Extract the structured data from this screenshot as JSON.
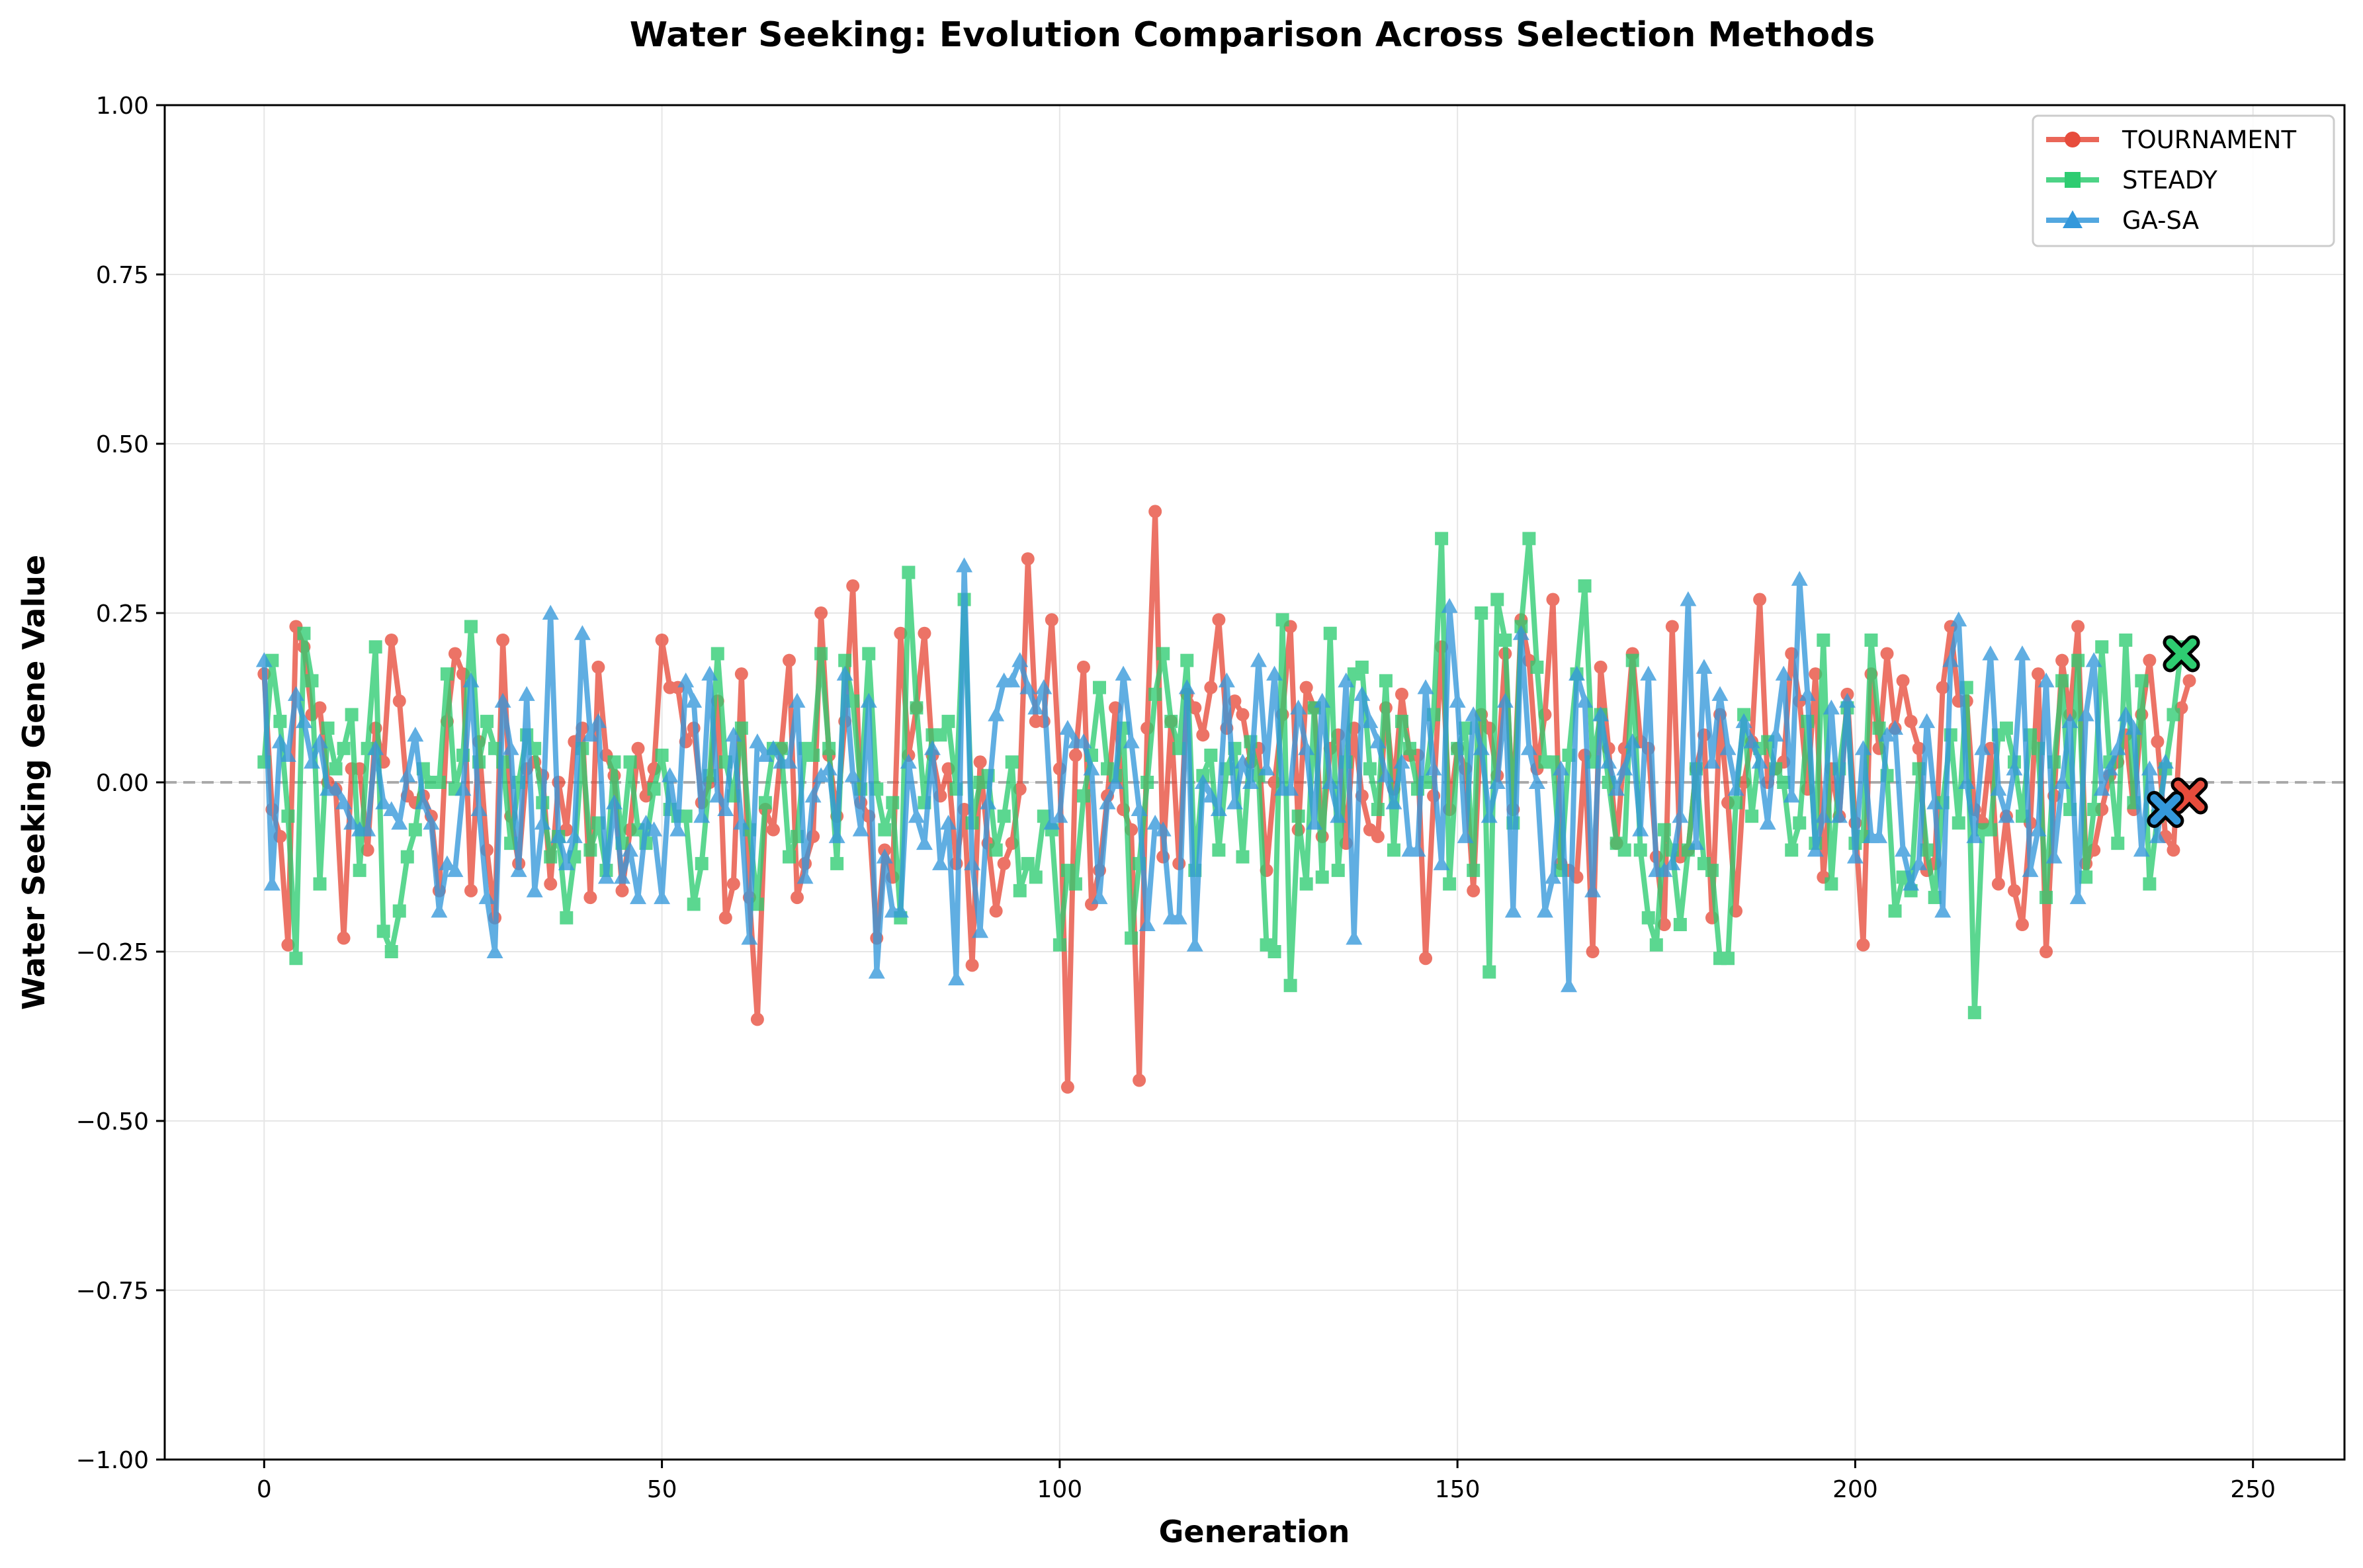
{
  "chart_data": {
    "type": "line",
    "title": "Water Seeking: Evolution Comparison Across Selection Methods",
    "xlabel": "Generation",
    "ylabel": "Water Seeking Gene Value",
    "xlim": [
      -12.5,
      261.5
    ],
    "ylim": [
      -1.0,
      1.0
    ],
    "xticks": [
      0,
      50,
      100,
      150,
      200,
      250
    ],
    "yticks": [
      -1.0,
      -0.75,
      -0.5,
      -0.25,
      0.0,
      0.25,
      0.5,
      0.75,
      1.0
    ],
    "xtick_labels": [
      "0",
      "50",
      "100",
      "150",
      "200",
      "250"
    ],
    "ytick_labels": [
      "−1.00",
      "−0.75",
      "−0.50",
      "−0.25",
      "0.00",
      "0.25",
      "0.50",
      "0.75",
      "1.00"
    ],
    "grid": true,
    "reference_line": 0.0,
    "legend_position": "top-right",
    "x": "generations 0-249",
    "series": [
      {
        "name": "TOURNAMENT",
        "color": "#e74c3c",
        "marker": "circle",
        "final_value": -0.02,
        "values": [
          0.16,
          -0.04,
          -0.08,
          -0.24,
          0.23,
          0.2,
          0.1,
          0.11,
          0.0,
          -0.01,
          -0.23,
          0.02,
          0.02,
          -0.1,
          0.08,
          0.03,
          0.21,
          0.12,
          -0.02,
          -0.03,
          -0.02,
          -0.05,
          -0.16,
          0.09,
          0.19,
          0.16,
          -0.16,
          0.06,
          -0.1,
          -0.2,
          0.21,
          -0.05,
          -0.12,
          0.02,
          0.03,
          0.01,
          -0.15,
          0.0,
          -0.07,
          0.06,
          0.08,
          -0.17,
          0.17,
          0.04,
          0.01,
          -0.16,
          -0.07,
          0.05,
          -0.02,
          0.02,
          0.21,
          0.14,
          0.14,
          0.06,
          0.08,
          -0.03,
          0.0,
          0.12,
          -0.2,
          -0.15,
          0.16,
          -0.17,
          -0.35,
          -0.04,
          -0.07,
          0.05,
          0.18,
          -0.17,
          -0.12,
          -0.08,
          0.25,
          0.04,
          -0.05,
          0.09,
          0.29,
          -0.03,
          -0.05,
          -0.23,
          -0.1,
          -0.14,
          0.22,
          0.04,
          0.11,
          0.22,
          0.04,
          -0.02,
          0.02,
          -0.12,
          -0.04,
          -0.27,
          0.03,
          -0.09,
          -0.19,
          -0.12,
          -0.09,
          -0.01,
          0.33,
          0.09,
          0.09,
          0.24,
          0.02,
          -0.45,
          0.04,
          0.17,
          -0.18,
          -0.13,
          -0.02,
          0.11,
          -0.04,
          -0.07,
          -0.44,
          0.08,
          0.4,
          -0.11,
          0.09,
          -0.12,
          0.13,
          0.11,
          0.07,
          0.14,
          0.24,
          0.08,
          0.12,
          0.1,
          0.03,
          0.05,
          -0.13,
          0.0,
          0.1,
          0.23,
          -0.07,
          0.14,
          0.11,
          -0.08,
          0.05,
          0.07,
          -0.09,
          0.08,
          -0.02,
          -0.07,
          -0.08,
          0.11,
          -0.01,
          0.13,
          0.04,
          0.04,
          -0.26,
          -0.02,
          0.2,
          -0.04,
          0.05,
          0.02,
          -0.16,
          0.1,
          0.08,
          0.01,
          0.19,
          -0.04,
          0.24,
          0.18,
          0.02,
          0.1,
          0.27,
          -0.12,
          -0.13,
          -0.14,
          0.04,
          -0.25,
          0.17,
          0.05,
          -0.09,
          0.05,
          0.19,
          0.06,
          0.05,
          -0.11,
          -0.21,
          0.23,
          -0.11,
          -0.1,
          0.02,
          0.07,
          -0.2,
          0.1,
          -0.03,
          -0.19,
          0.0,
          0.06,
          0.27,
          0.0,
          0.02,
          0.03,
          0.19,
          0.12,
          -0.01,
          0.16,
          -0.14,
          0.02,
          -0.05,
          0.13,
          -0.06,
          -0.24,
          0.16,
          0.05,
          0.19,
          0.08,
          0.15,
          0.09,
          0.05,
          -0.13,
          -0.12,
          0.14,
          0.23,
          0.12,
          0.12,
          -0.04,
          -0.06,
          0.05,
          -0.15,
          -0.05,
          -0.16,
          -0.21,
          -0.06,
          0.16,
          -0.25,
          -0.02,
          0.18,
          0.1,
          0.23,
          -0.12,
          -0.1,
          -0.04,
          0.01,
          0.03,
          0.07,
          -0.04,
          0.1,
          0.18,
          0.06,
          -0.08,
          -0.1,
          0.11,
          0.15
        ]
      },
      {
        "name": "STEADY",
        "color": "#2ecc71",
        "marker": "square",
        "final_value": 0.19,
        "values": [
          0.03,
          0.18,
          0.09,
          -0.05,
          -0.26,
          0.22,
          0.15,
          -0.15,
          0.08,
          0.02,
          0.05,
          0.1,
          -0.13,
          0.05,
          0.2,
          -0.22,
          -0.25,
          -0.19,
          -0.11,
          -0.07,
          0.02,
          0.0,
          0.0,
          0.16,
          -0.01,
          0.04,
          0.23,
          0.03,
          0.09,
          0.05,
          0.03,
          -0.09,
          0.0,
          0.07,
          0.05,
          -0.03,
          -0.11,
          -0.08,
          -0.2,
          -0.11,
          0.05,
          -0.1,
          -0.06,
          -0.13,
          0.03,
          -0.09,
          0.03,
          -0.07,
          -0.09,
          -0.01,
          0.04,
          -0.04,
          -0.05,
          -0.05,
          -0.18,
          -0.12,
          0.01,
          0.19,
          0.03,
          -0.02,
          0.08,
          -0.07,
          -0.18,
          -0.03,
          0.05,
          0.05,
          -0.11,
          -0.08,
          0.05,
          0.04,
          0.19,
          0.05,
          -0.12,
          0.18,
          0.12,
          -0.01,
          0.19,
          -0.01,
          -0.07,
          -0.03,
          -0.2,
          0.31,
          0.11,
          -0.03,
          0.07,
          0.07,
          0.09,
          -0.01,
          0.27,
          -0.06,
          0.0,
          0.01,
          -0.1,
          -0.05,
          0.03,
          -0.16,
          -0.12,
          -0.14,
          -0.05,
          -0.07,
          -0.24,
          -0.13,
          -0.15,
          -0.02,
          0.04,
          0.14,
          0.02,
          0.01,
          0.08,
          -0.23,
          -0.12,
          0.0,
          0.13,
          0.19,
          0.09,
          0.05,
          0.18,
          -0.13,
          0.01,
          0.04,
          -0.1,
          0.02,
          0.05,
          -0.11,
          0.06,
          0.01,
          -0.24,
          -0.25,
          0.24,
          -0.3,
          -0.05,
          -0.15,
          0.11,
          -0.14,
          0.22,
          -0.13,
          0.03,
          0.16,
          0.17,
          0.02,
          -0.04,
          0.15,
          -0.1,
          0.09,
          0.05,
          -0.01,
          0.0,
          0.1,
          0.36,
          -0.15,
          0.05,
          0.08,
          -0.13,
          0.25,
          -0.28,
          0.27,
          0.21,
          -0.06,
          0.23,
          0.36,
          0.17,
          0.03,
          0.03,
          -0.13,
          0.04,
          0.16,
          0.29,
          0.03,
          0.1,
          0.0,
          -0.09,
          -0.1,
          0.18,
          -0.1,
          -0.2,
          -0.24,
          -0.07,
          -0.1,
          -0.21,
          -0.1,
          0.02,
          -0.12,
          -0.13,
          -0.26,
          -0.26,
          -0.03,
          0.1,
          -0.05,
          0.05,
          0.06,
          0.02,
          0.0,
          -0.1,
          -0.06,
          0.09,
          -0.09,
          0.21,
          -0.15,
          0.02,
          0.11,
          -0.09,
          -0.08,
          0.21,
          0.08,
          0.01,
          -0.19,
          -0.14,
          -0.16,
          0.02,
          -0.1,
          -0.17,
          -0.03,
          0.07,
          -0.06,
          0.14,
          -0.34,
          -0.07,
          -0.07,
          0.07,
          0.08,
          0.03,
          -0.05,
          0.07,
          0.05,
          -0.17,
          0.03,
          0.15,
          -0.04,
          0.18,
          -0.14,
          -0.04,
          0.2,
          0.03,
          -0.09,
          0.21,
          -0.03,
          0.15,
          -0.15,
          -0.05,
          0.02,
          0.1,
          0.2
        ]
      },
      {
        "name": "GA-SA",
        "color": "#3498db",
        "marker": "triangle",
        "final_value": -0.04,
        "values": [
          0.18,
          -0.15,
          0.06,
          0.04,
          0.13,
          0.09,
          0.03,
          0.06,
          -0.01,
          -0.01,
          -0.03,
          -0.06,
          -0.07,
          -0.07,
          0.05,
          -0.03,
          -0.04,
          -0.06,
          0.01,
          0.07,
          -0.03,
          -0.06,
          -0.19,
          -0.12,
          -0.13,
          -0.01,
          0.15,
          -0.04,
          -0.17,
          -0.25,
          0.12,
          0.05,
          -0.13,
          0.13,
          -0.16,
          -0.06,
          0.25,
          -0.08,
          -0.12,
          -0.08,
          0.22,
          0.07,
          0.09,
          -0.14,
          -0.03,
          -0.14,
          -0.1,
          -0.17,
          -0.06,
          -0.07,
          -0.17,
          0.01,
          -0.07,
          0.15,
          0.12,
          -0.05,
          0.16,
          -0.02,
          -0.04,
          0.07,
          -0.06,
          -0.23,
          0.06,
          0.04,
          0.05,
          0.03,
          0.03,
          0.12,
          -0.14,
          -0.02,
          0.01,
          0.02,
          -0.08,
          0.16,
          0.01,
          -0.07,
          0.12,
          -0.28,
          -0.11,
          -0.19,
          -0.19,
          0.03,
          -0.05,
          -0.09,
          0.05,
          -0.12,
          -0.06,
          -0.29,
          0.32,
          -0.12,
          -0.22,
          -0.03,
          0.1,
          0.15,
          0.15,
          0.18,
          0.14,
          0.11,
          0.14,
          -0.06,
          -0.05,
          0.08,
          0.06,
          0.06,
          0.02,
          -0.17,
          -0.03,
          0.0,
          0.16,
          0.06,
          -0.04,
          -0.21,
          -0.06,
          -0.07,
          -0.2,
          -0.2,
          0.14,
          -0.24,
          0.0,
          -0.02,
          -0.04,
          0.15,
          -0.03,
          0.03,
          0.0,
          0.18,
          0.02,
          0.16,
          -0.01,
          -0.01,
          0.11,
          0.05,
          -0.06,
          0.12,
          0.0,
          -0.05,
          0.15,
          -0.23,
          0.13,
          0.09,
          0.06,
          0.01,
          -0.03,
          0.03,
          -0.1,
          -0.1,
          0.14,
          0.02,
          -0.12,
          0.26,
          0.12,
          -0.08,
          0.1,
          0.05,
          -0.05,
          0.0,
          0.12,
          -0.19,
          0.22,
          0.05,
          0.0,
          -0.19,
          -0.14,
          0.02,
          -0.3,
          0.16,
          0.12,
          -0.16,
          0.1,
          0.03,
          -0.01,
          0.02,
          0.06,
          -0.07,
          0.16,
          -0.13,
          -0.13,
          -0.12,
          -0.05,
          0.27,
          -0.09,
          0.17,
          0.03,
          0.13,
          0.05,
          -0.01,
          0.09,
          0.06,
          0.03,
          -0.06,
          0.07,
          0.16,
          -0.02,
          0.3,
          0.13,
          -0.1,
          -0.05,
          0.11,
          -0.05,
          0.12,
          -0.11,
          0.05,
          -0.08,
          -0.08,
          0.07,
          0.08,
          -0.1,
          -0.15,
          -0.12,
          0.09,
          -0.03,
          -0.19,
          0.18,
          0.24,
          0.0,
          -0.08,
          0.05,
          0.19,
          -0.01,
          -0.05,
          0.02,
          0.19,
          -0.13,
          -0.07,
          0.15,
          -0.11,
          0.0,
          0.09,
          -0.17,
          0.1,
          0.18,
          -0.01,
          0.02,
          0.05,
          0.1,
          0.08,
          -0.1,
          0.02,
          -0.08,
          0.03
        ]
      }
    ]
  }
}
